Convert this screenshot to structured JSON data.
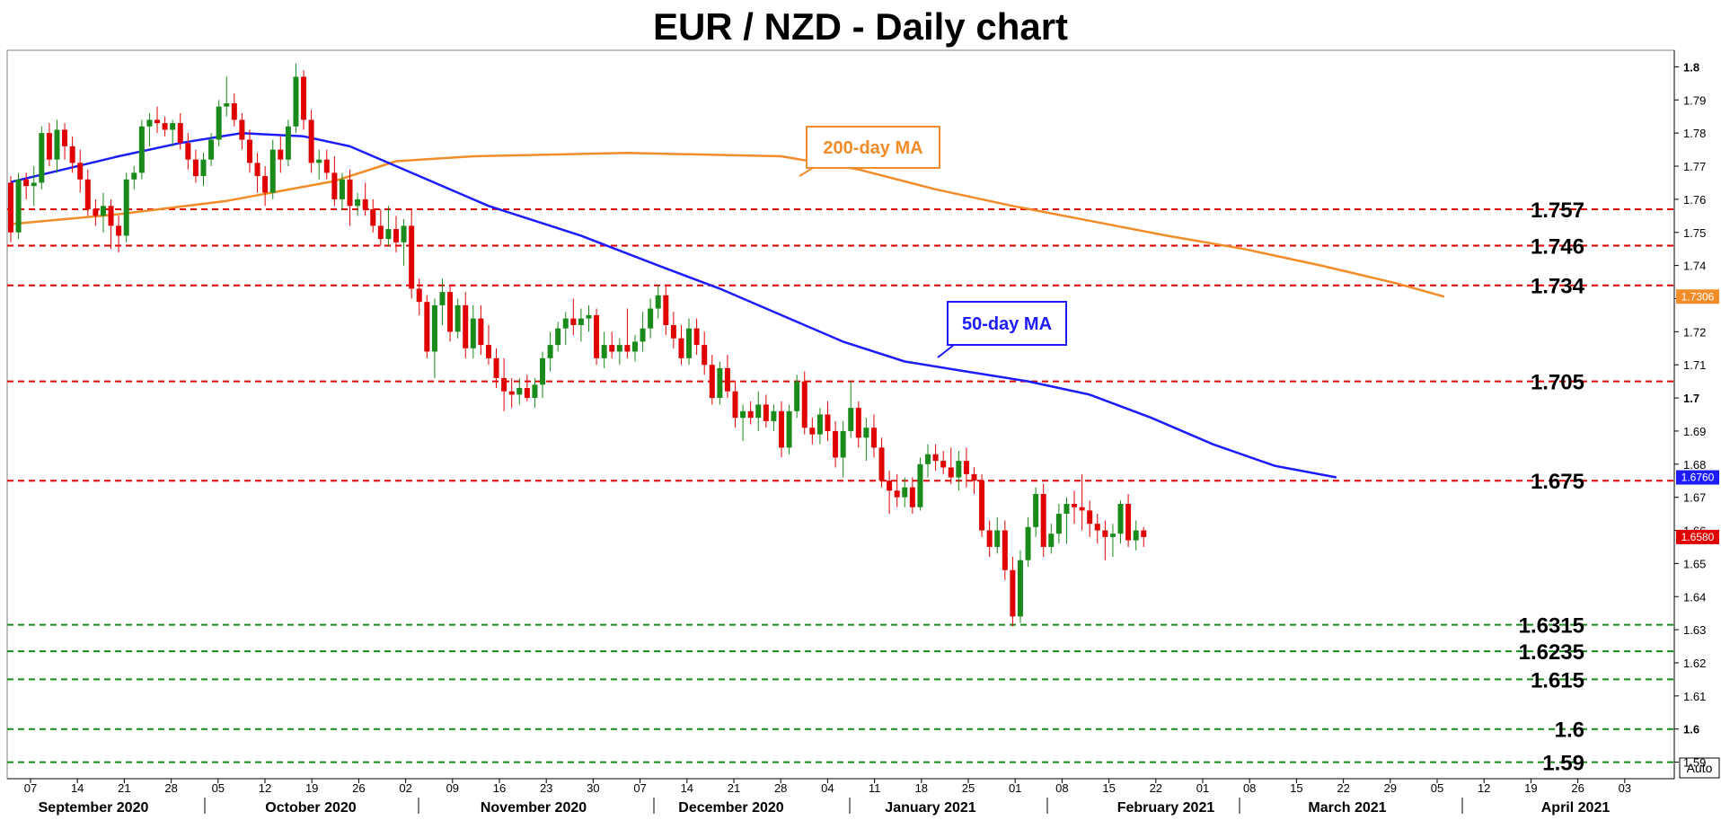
{
  "chart_data": {
    "type": "candlestick",
    "title": "EUR / NZD - Daily chart",
    "ylim": [
      1.585,
      1.805
    ],
    "y_ticks": [
      "1.8",
      "1.79",
      "1.78",
      "1.77",
      "1.76",
      "1.75",
      "1.74",
      "1.73",
      "1.72",
      "1.71",
      "1.7",
      "1.69",
      "1.68",
      "1.67",
      "1.66",
      "1.65",
      "1.64",
      "1.63",
      "1.62",
      "1.61",
      "1.6",
      "1.59"
    ],
    "day_ticks": [
      "07",
      "14",
      "21",
      "28",
      "05",
      "12",
      "19",
      "26",
      "02",
      "09",
      "16",
      "23",
      "30",
      "07",
      "14",
      "21",
      "28",
      "04",
      "11",
      "18",
      "25",
      "01",
      "08",
      "15",
      "22",
      "01",
      "08",
      "15",
      "22",
      "29",
      "05",
      "12",
      "19",
      "26",
      "03"
    ],
    "months": [
      "September 2020",
      "October 2020",
      "November 2020",
      "December 2020",
      "January 2021",
      "February 2021",
      "March 2021",
      "April 2021"
    ],
    "ohlc": [
      [
        1.765,
        1.767,
        1.747,
        1.75
      ],
      [
        1.75,
        1.768,
        1.748,
        1.766
      ],
      [
        1.766,
        1.768,
        1.76,
        1.764
      ],
      [
        1.764,
        1.77,
        1.758,
        1.765
      ],
      [
        1.765,
        1.782,
        1.763,
        1.78
      ],
      [
        1.78,
        1.783,
        1.77,
        1.772
      ],
      [
        1.772,
        1.784,
        1.768,
        1.781
      ],
      [
        1.781,
        1.783,
        1.772,
        1.776
      ],
      [
        1.776,
        1.779,
        1.768,
        1.771
      ],
      [
        1.771,
        1.775,
        1.762,
        1.766
      ],
      [
        1.766,
        1.769,
        1.755,
        1.757
      ],
      [
        1.757,
        1.76,
        1.752,
        1.755
      ],
      [
        1.755,
        1.762,
        1.75,
        1.758
      ],
      [
        1.758,
        1.76,
        1.745,
        1.752
      ],
      [
        1.752,
        1.755,
        1.744,
        1.749
      ],
      [
        1.749,
        1.768,
        1.747,
        1.766
      ],
      [
        1.766,
        1.77,
        1.763,
        1.768
      ],
      [
        1.768,
        1.784,
        1.766,
        1.782
      ],
      [
        1.782,
        1.786,
        1.776,
        1.784
      ],
      [
        1.784,
        1.788,
        1.78,
        1.783
      ],
      [
        1.783,
        1.785,
        1.779,
        1.781
      ],
      [
        1.781,
        1.784,
        1.776,
        1.783
      ],
      [
        1.783,
        1.786,
        1.775,
        1.777
      ],
      [
        1.777,
        1.78,
        1.769,
        1.772
      ],
      [
        1.772,
        1.775,
        1.765,
        1.767
      ],
      [
        1.767,
        1.774,
        1.764,
        1.772
      ],
      [
        1.772,
        1.78,
        1.77,
        1.778
      ],
      [
        1.778,
        1.79,
        1.776,
        1.788
      ],
      [
        1.788,
        1.797,
        1.785,
        1.789
      ],
      [
        1.789,
        1.792,
        1.782,
        1.784
      ],
      [
        1.784,
        1.786,
        1.775,
        1.778
      ],
      [
        1.778,
        1.781,
        1.768,
        1.771
      ],
      [
        1.771,
        1.774,
        1.762,
        1.767
      ],
      [
        1.767,
        1.77,
        1.758,
        1.762
      ],
      [
        1.762,
        1.778,
        1.76,
        1.775
      ],
      [
        1.775,
        1.779,
        1.768,
        1.772
      ],
      [
        1.772,
        1.784,
        1.77,
        1.782
      ],
      [
        1.782,
        1.801,
        1.78,
        1.797
      ],
      [
        1.797,
        1.799,
        1.781,
        1.784
      ],
      [
        1.784,
        1.787,
        1.768,
        1.771
      ],
      [
        1.771,
        1.775,
        1.766,
        1.772
      ],
      [
        1.772,
        1.775,
        1.766,
        1.768
      ],
      [
        1.768,
        1.773,
        1.758,
        1.76
      ],
      [
        1.76,
        1.768,
        1.757,
        1.766
      ],
      [
        1.766,
        1.769,
        1.752,
        1.758
      ],
      [
        1.758,
        1.762,
        1.755,
        1.76
      ],
      [
        1.76,
        1.765,
        1.755,
        1.757
      ],
      [
        1.757,
        1.76,
        1.75,
        1.752
      ],
      [
        1.752,
        1.757,
        1.746,
        1.748
      ],
      [
        1.748,
        1.758,
        1.746,
        1.751
      ],
      [
        1.751,
        1.755,
        1.744,
        1.747
      ],
      [
        1.747,
        1.754,
        1.74,
        1.752
      ],
      [
        1.752,
        1.757,
        1.73,
        1.733
      ],
      [
        1.733,
        1.736,
        1.725,
        1.729
      ],
      [
        1.729,
        1.731,
        1.712,
        1.714
      ],
      [
        1.714,
        1.73,
        1.706,
        1.728
      ],
      [
        1.728,
        1.736,
        1.722,
        1.732
      ],
      [
        1.732,
        1.734,
        1.717,
        1.72
      ],
      [
        1.72,
        1.73,
        1.718,
        1.728
      ],
      [
        1.728,
        1.732,
        1.712,
        1.715
      ],
      [
        1.715,
        1.728,
        1.712,
        1.724
      ],
      [
        1.724,
        1.728,
        1.713,
        1.716
      ],
      [
        1.716,
        1.722,
        1.71,
        1.712
      ],
      [
        1.712,
        1.715,
        1.703,
        1.706
      ],
      [
        1.706,
        1.712,
        1.696,
        1.702
      ],
      [
        1.702,
        1.706,
        1.697,
        1.701
      ],
      [
        1.701,
        1.706,
        1.698,
        1.703
      ],
      [
        1.703,
        1.707,
        1.699,
        1.7
      ],
      [
        1.7,
        1.706,
        1.697,
        1.704
      ],
      [
        1.704,
        1.714,
        1.7,
        1.712
      ],
      [
        1.712,
        1.72,
        1.708,
        1.716
      ],
      [
        1.716,
        1.723,
        1.714,
        1.721
      ],
      [
        1.721,
        1.726,
        1.716,
        1.724
      ],
      [
        1.724,
        1.73,
        1.719,
        1.722
      ],
      [
        1.722,
        1.727,
        1.717,
        1.724
      ],
      [
        1.724,
        1.728,
        1.72,
        1.725
      ],
      [
        1.725,
        1.727,
        1.71,
        1.712
      ],
      [
        1.712,
        1.72,
        1.709,
        1.716
      ],
      [
        1.716,
        1.72,
        1.712,
        1.714
      ],
      [
        1.714,
        1.718,
        1.71,
        1.716
      ],
      [
        1.716,
        1.727,
        1.712,
        1.714
      ],
      [
        1.714,
        1.719,
        1.711,
        1.717
      ],
      [
        1.717,
        1.726,
        1.714,
        1.721
      ],
      [
        1.721,
        1.73,
        1.718,
        1.727
      ],
      [
        1.727,
        1.734,
        1.724,
        1.731
      ],
      [
        1.731,
        1.734,
        1.719,
        1.722
      ],
      [
        1.722,
        1.726,
        1.715,
        1.718
      ],
      [
        1.718,
        1.722,
        1.71,
        1.712
      ],
      [
        1.712,
        1.724,
        1.71,
        1.721
      ],
      [
        1.721,
        1.724,
        1.713,
        1.716
      ],
      [
        1.716,
        1.72,
        1.707,
        1.71
      ],
      [
        1.71,
        1.713,
        1.698,
        1.7
      ],
      [
        1.7,
        1.711,
        1.698,
        1.709
      ],
      [
        1.709,
        1.713,
        1.7,
        1.702
      ],
      [
        1.702,
        1.705,
        1.691,
        1.694
      ],
      [
        1.694,
        1.698,
        1.687,
        1.696
      ],
      [
        1.696,
        1.699,
        1.692,
        1.694
      ],
      [
        1.694,
        1.702,
        1.69,
        1.698
      ],
      [
        1.698,
        1.701,
        1.691,
        1.693
      ],
      [
        1.693,
        1.698,
        1.69,
        1.696
      ],
      [
        1.696,
        1.699,
        1.682,
        1.685
      ],
      [
        1.685,
        1.698,
        1.683,
        1.696
      ],
      [
        1.696,
        1.707,
        1.694,
        1.705
      ],
      [
        1.705,
        1.708,
        1.689,
        1.691
      ],
      [
        1.691,
        1.694,
        1.686,
        1.689
      ],
      [
        1.689,
        1.697,
        1.686,
        1.695
      ],
      [
        1.695,
        1.699,
        1.687,
        1.69
      ],
      [
        1.69,
        1.693,
        1.679,
        1.682
      ],
      [
        1.682,
        1.693,
        1.676,
        1.69
      ],
      [
        1.69,
        1.705,
        1.688,
        1.697
      ],
      [
        1.697,
        1.699,
        1.685,
        1.688
      ],
      [
        1.688,
        1.694,
        1.681,
        1.691
      ],
      [
        1.691,
        1.695,
        1.682,
        1.685
      ],
      [
        1.685,
        1.688,
        1.673,
        1.675
      ],
      [
        1.675,
        1.678,
        1.665,
        1.672
      ],
      [
        1.672,
        1.677,
        1.667,
        1.67
      ],
      [
        1.67,
        1.676,
        1.667,
        1.673
      ],
      [
        1.673,
        1.676,
        1.665,
        1.667
      ],
      [
        1.667,
        1.682,
        1.666,
        1.68
      ],
      [
        1.68,
        1.686,
        1.676,
        1.683
      ],
      [
        1.683,
        1.686,
        1.678,
        1.681
      ],
      [
        1.681,
        1.684,
        1.677,
        1.679
      ],
      [
        1.679,
        1.685,
        1.674,
        1.676
      ],
      [
        1.676,
        1.684,
        1.672,
        1.681
      ],
      [
        1.681,
        1.685,
        1.673,
        1.677
      ],
      [
        1.677,
        1.679,
        1.671,
        1.675
      ],
      [
        1.675,
        1.677,
        1.658,
        1.66
      ],
      [
        1.66,
        1.663,
        1.652,
        1.655
      ],
      [
        1.655,
        1.664,
        1.653,
        1.66
      ],
      [
        1.66,
        1.663,
        1.645,
        1.648
      ],
      [
        1.648,
        1.652,
        1.631,
        1.634
      ],
      [
        1.634,
        1.654,
        1.632,
        1.651
      ],
      [
        1.651,
        1.664,
        1.649,
        1.661
      ],
      [
        1.661,
        1.673,
        1.658,
        1.671
      ],
      [
        1.671,
        1.674,
        1.652,
        1.655
      ],
      [
        1.655,
        1.662,
        1.653,
        1.659
      ],
      [
        1.659,
        1.668,
        1.656,
        1.665
      ],
      [
        1.665,
        1.67,
        1.656,
        1.668
      ],
      [
        1.668,
        1.672,
        1.662,
        1.667
      ],
      [
        1.667,
        1.677,
        1.66,
        1.666
      ],
      [
        1.666,
        1.669,
        1.658,
        1.662
      ],
      [
        1.662,
        1.665,
        1.656,
        1.66
      ],
      [
        1.66,
        1.663,
        1.651,
        1.658
      ],
      [
        1.658,
        1.662,
        1.652,
        1.659
      ],
      [
        1.659,
        1.669,
        1.656,
        1.668
      ],
      [
        1.668,
        1.671,
        1.655,
        1.657
      ],
      [
        1.657,
        1.663,
        1.654,
        1.66
      ],
      [
        1.66,
        1.661,
        1.655,
        1.658
      ]
    ],
    "ma200": [
      [
        0,
        1.7525
      ],
      [
        14,
        1.7555
      ],
      [
        28,
        1.7595
      ],
      [
        42,
        1.7655
      ],
      [
        50,
        1.7715
      ],
      [
        60,
        1.773
      ],
      [
        80,
        1.774
      ],
      [
        100,
        1.773
      ],
      [
        110,
        1.769
      ],
      [
        120,
        1.763
      ],
      [
        130,
        1.758
      ],
      [
        140,
        1.7535
      ],
      [
        150,
        1.749
      ],
      [
        160,
        1.745
      ],
      [
        170,
        1.74
      ],
      [
        180,
        1.7345
      ],
      [
        186,
        1.7306
      ]
    ],
    "ma50": [
      [
        0,
        1.7652
      ],
      [
        14,
        1.773
      ],
      [
        22,
        1.777
      ],
      [
        30,
        1.78
      ],
      [
        38,
        1.779
      ],
      [
        44,
        1.776
      ],
      [
        52,
        1.768
      ],
      [
        62,
        1.758
      ],
      [
        74,
        1.749
      ],
      [
        84,
        1.74
      ],
      [
        92,
        1.733
      ],
      [
        100,
        1.725
      ],
      [
        108,
        1.717
      ],
      [
        116,
        1.711
      ],
      [
        124,
        1.708
      ],
      [
        132,
        1.705
      ],
      [
        140,
        1.701
      ],
      [
        148,
        1.694
      ],
      [
        156,
        1.686
      ],
      [
        164,
        1.6795
      ],
      [
        172,
        1.676
      ]
    ],
    "levels": [
      {
        "label": "1.757",
        "value": 1.757,
        "color": "#e00000"
      },
      {
        "label": "1.746",
        "value": 1.746,
        "color": "#e00000"
      },
      {
        "label": "1.734",
        "value": 1.734,
        "color": "#e00000"
      },
      {
        "label": "1.705",
        "value": 1.705,
        "color": "#e00000"
      },
      {
        "label": "1.675",
        "value": 1.675,
        "color": "#e00000"
      },
      {
        "label": "1.6315",
        "value": 1.6315,
        "color": "#1a8a1a"
      },
      {
        "label": "1.6235",
        "value": 1.6235,
        "color": "#1a8a1a"
      },
      {
        "label": "1.615",
        "value": 1.615,
        "color": "#1a8a1a"
      },
      {
        "label": "1.6",
        "value": 1.6,
        "color": "#1a8a1a"
      },
      {
        "label": "1.59",
        "value": 1.59,
        "color": "#1a8a1a"
      }
    ],
    "annotations": {
      "ma200_label": "200-day MA",
      "ma50_label": "50-day MA"
    },
    "price_flags": [
      {
        "label": "1.7306",
        "value": 1.7306,
        "color": "#f28c28"
      },
      {
        "label": "1.6760",
        "value": 1.676,
        "color": "#1c1cff"
      },
      {
        "label": "1.6580",
        "value": 1.658,
        "color": "#e00000"
      }
    ],
    "corner_label": "Auto",
    "colors": {
      "up": "#1a8a1a",
      "down": "#e00000",
      "ma200": "#f28c28",
      "ma50": "#1c1cff"
    }
  }
}
